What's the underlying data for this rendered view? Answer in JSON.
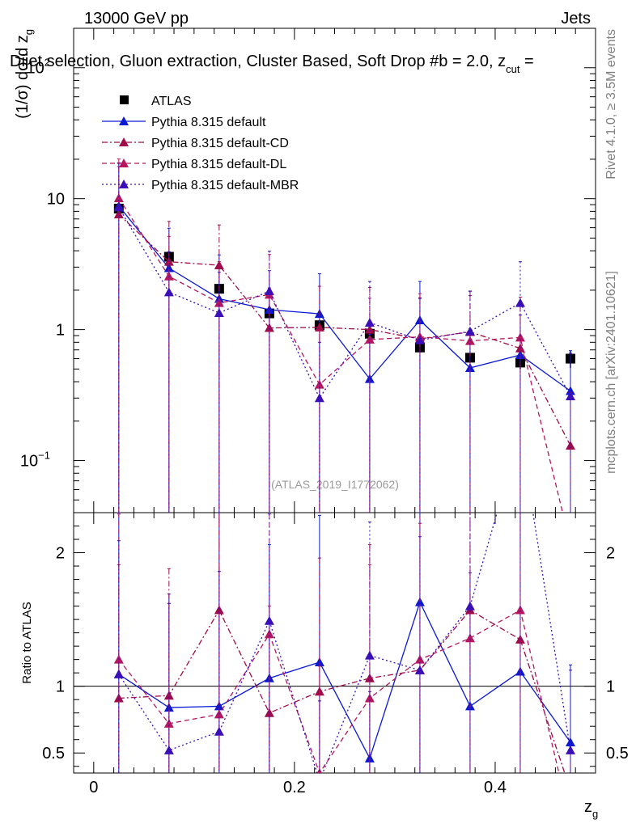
{
  "header": {
    "left": "13000 GeV pp",
    "right": "Jets",
    "title": "Dijet selection, Gluon extraction, Cluster Based, Soft Drop #b = 2.0, z",
    "title_sub": "cut",
    "title_tail": " =",
    "side_top": "Rivet 4.1.0, ≥ 3.5M events",
    "side_bottom": "mcplots.cern.ch [arXiv:2401.10621]",
    "watermark": "(ATLAS_2019_I1772062)"
  },
  "chart_data": {
    "type": "scatter",
    "x_bin_edges": [
      0.0,
      0.05,
      0.1,
      0.15,
      0.2,
      0.25,
      0.3,
      0.35,
      0.4,
      0.45,
      0.5
    ],
    "x": [
      0.025,
      0.075,
      0.125,
      0.175,
      0.225,
      0.275,
      0.325,
      0.375,
      0.425,
      0.475
    ],
    "xlim": [
      -0.02,
      0.5
    ],
    "xlabel": "z",
    "xlabel_sub": "g",
    "x_ticks": [
      0,
      0.2,
      0.4
    ],
    "x_tick_labels": [
      "0",
      "0.2",
      "0.4"
    ],
    "main_panel": {
      "ylabel": "(1/σ) dσ/d z",
      "ylabel_sub": "g",
      "yscale": "log",
      "ylim": [
        0.04,
        200
      ],
      "y_ticks": [
        {
          "value": 0.1,
          "label": "10",
          "sup": "−1"
        },
        {
          "value": 1,
          "label": "1",
          "sup": ""
        },
        {
          "value": 10,
          "label": "10",
          "sup": ""
        },
        {
          "value": 100,
          "label": "10",
          "sup": "2"
        }
      ]
    },
    "ratio_panel": {
      "ylabel": "Ratio to ATLAS",
      "ylim": [
        0.35,
        2.3
      ],
      "reference": 1,
      "y_ticks": [
        {
          "value": 0.5,
          "label": "0.5"
        },
        {
          "value": 1,
          "label": "1"
        },
        {
          "value": 2,
          "label": "2"
        }
      ]
    },
    "series": [
      {
        "name": "ATLAS",
        "style": "data",
        "color": "#000000",
        "marker": "square",
        "values": [
          8.4,
          3.6,
          2.05,
          1.33,
          1.08,
          0.93,
          0.73,
          0.61,
          0.56,
          0.6
        ],
        "err_up": [
          0.4,
          0.2,
          0.1,
          0.1,
          0.06,
          0.06,
          0.06,
          0.05,
          0.06,
          0.09
        ],
        "err_down": [
          0.4,
          0.2,
          0.1,
          0.1,
          0.06,
          0.06,
          0.06,
          0.05,
          0.06,
          0.09
        ],
        "ratio_band": [
          0.05,
          0.05,
          0.05,
          0.07,
          0.06,
          0.06,
          0.08,
          0.08,
          0.1,
          0.15
        ]
      },
      {
        "name": "Pythia 8.315 default",
        "style": "solid",
        "color": "#0a19d4",
        "marker": "triangle",
        "values": [
          8.8,
          2.95,
          1.72,
          1.42,
          1.32,
          0.42,
          1.18,
          0.51,
          0.64,
          0.34
        ],
        "err_up": [
          10,
          3.0,
          2.0,
          1.4,
          1.35,
          0.5,
          1.15,
          0.5,
          0.65,
          0.35
        ],
        "err_down": [
          8.79,
          2.94,
          1.71,
          1.41,
          1.31,
          0.41,
          1.17,
          0.5,
          0.63,
          0.33
        ],
        "ratio": [
          1.09,
          0.84,
          0.85,
          1.06,
          1.18,
          0.46,
          1.63,
          0.85,
          1.11,
          0.58
        ],
        "ratio_err_up": [
          1.2,
          0.85,
          2.0,
          1.0,
          1.1,
          0.5,
          0.7,
          1.0,
          1.3,
          0.58
        ]
      },
      {
        "name": "Pythia 8.315 default-CD",
        "style": "dashdot",
        "color": "#9e0b48",
        "marker": "triangle",
        "values": [
          7.6,
          3.3,
          3.1,
          1.03,
          1.04,
          1.0,
          0.85,
          0.96,
          0.72,
          0.13
        ],
        "err_up": [
          10,
          3.4,
          3.2,
          1.05,
          1.1,
          1.1,
          0.9,
          1.0,
          0.8,
          0.2
        ],
        "err_down": [
          7.59,
          3.29,
          3.09,
          1.02,
          1.03,
          0.99,
          0.84,
          0.95,
          0.71,
          0.12
        ],
        "ratio": [
          0.91,
          0.93,
          1.57,
          0.8,
          0.96,
          1.06,
          1.12,
          1.57,
          1.35,
          0.22
        ],
        "ratio_err_up": [
          1.0,
          0.95,
          1.6,
          0.8,
          1.0,
          1.0,
          1.1,
          1.3,
          1.3,
          0.3
        ]
      },
      {
        "name": "Pythia 8.315 default-DL",
        "style": "dashed",
        "color": "#b5165e",
        "marker": "triangle",
        "values": [
          10.1,
          2.55,
          1.6,
          1.85,
          0.38,
          0.84,
          0.88,
          0.82,
          0.87,
          0.0
        ],
        "err_up": [
          10,
          2.6,
          1.7,
          1.9,
          0.6,
          0.9,
          1.0,
          1.0,
          0.9,
          0.0
        ],
        "err_down": [
          10.09,
          2.54,
          1.59,
          1.84,
          0.37,
          0.83,
          0.87,
          0.81,
          0.86,
          0.0
        ],
        "ratio": [
          1.2,
          0.72,
          0.79,
          1.39,
          0.35,
          0.91,
          1.2,
          1.36,
          1.57,
          0.0
        ],
        "ratio_err_up": [
          1.1,
          0.9,
          1.8,
          1.2,
          0.8,
          1.0,
          1.2,
          1.2,
          1.2,
          0.0
        ]
      },
      {
        "name": "Pythia 8.315 default-MBR",
        "style": "dotted",
        "color": "#3a0fb8",
        "marker": "triangle",
        "values": [
          8.6,
          1.93,
          1.34,
          1.97,
          0.3,
          1.13,
          0.83,
          0.97,
          1.6,
          0.31
        ],
        "err_up": [
          10,
          2.0,
          1.4,
          2.0,
          0.5,
          1.2,
          0.9,
          1.0,
          1.7,
          0.35
        ],
        "err_down": [
          8.59,
          1.92,
          1.33,
          1.96,
          0.29,
          1.12,
          0.82,
          0.96,
          1.59,
          0.3
        ],
        "ratio": [
          1.09,
          0.52,
          0.66,
          1.49,
          0.29,
          1.23,
          1.12,
          1.6,
          2.9,
          0.52
        ],
        "ratio_err_up": [
          1.0,
          1.1,
          1.2,
          0.8,
          0.6,
          1.0,
          1.0,
          1.0,
          1.0,
          0.6
        ]
      }
    ]
  }
}
